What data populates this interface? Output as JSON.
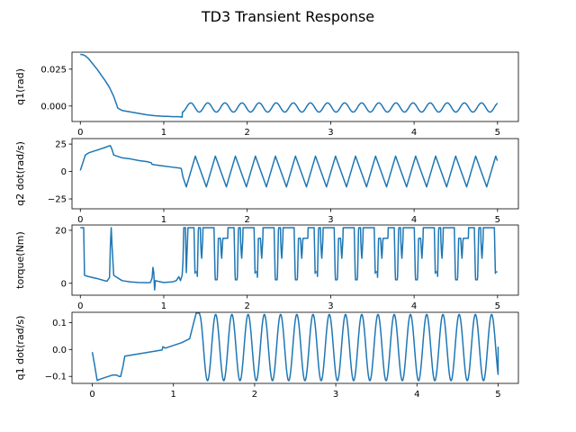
{
  "figure": {
    "title": "TD3 Transient Response"
  },
  "chart_data": [
    {
      "type": "line",
      "ylabel": "q1(rad)",
      "xlim": [
        -0.1,
        5.25
      ],
      "ylim": [
        -0.0105,
        0.0365
      ],
      "xticks": [
        0,
        1,
        2,
        3,
        4,
        5
      ],
      "yticks": [
        {
          "v": 0.025,
          "label": "0.025"
        },
        {
          "v": 0.0,
          "label": "0.000"
        }
      ],
      "color": "#1f77b4",
      "anchors": [
        [
          0,
          0.035
        ],
        [
          0.03,
          0.0348
        ],
        [
          0.06,
          0.034
        ],
        [
          0.1,
          0.032
        ],
        [
          0.2,
          0.025
        ],
        [
          0.3,
          0.017
        ],
        [
          0.35,
          0.0125
        ],
        [
          0.4,
          0.0065
        ],
        [
          0.45,
          -0.0015
        ],
        [
          0.5,
          -0.003
        ],
        [
          0.6,
          -0.004
        ],
        [
          0.7,
          -0.005
        ],
        [
          0.8,
          -0.006
        ],
        [
          0.9,
          -0.0066
        ],
        [
          1.0,
          -0.007
        ],
        [
          1.05,
          -0.007
        ],
        [
          1.1,
          -0.0072
        ],
        [
          1.18,
          -0.0072
        ],
        [
          1.22,
          -0.0075
        ]
      ],
      "osc": {
        "t0": 1.22,
        "t1": 5.0,
        "period": 0.205,
        "amp": 0.0031,
        "center": -0.001,
        "phase": 4.712
      }
    },
    {
      "type": "line",
      "ylabel": "q2 dot(rad/s)",
      "xlim": [
        -0.1,
        5.25
      ],
      "ylim": [
        -34,
        30
      ],
      "xticks": [
        0,
        1,
        2,
        3,
        4,
        5
      ],
      "yticks": [
        {
          "v": 25,
          "label": "25"
        },
        {
          "v": 0,
          "label": "0"
        },
        {
          "v": -25,
          "label": "−25"
        }
      ],
      "color": "#1f77b4",
      "anchors": [
        [
          0,
          1
        ],
        [
          0.03,
          8
        ],
        [
          0.06,
          15
        ],
        [
          0.1,
          17
        ],
        [
          0.2,
          19.5
        ],
        [
          0.3,
          22
        ],
        [
          0.35,
          23.5
        ],
        [
          0.36,
          23.5
        ],
        [
          0.38,
          20
        ],
        [
          0.4,
          15
        ],
        [
          0.5,
          12.5
        ],
        [
          0.6,
          11.5
        ],
        [
          0.7,
          10
        ],
        [
          0.8,
          9
        ],
        [
          0.85,
          8
        ],
        [
          0.86,
          6.5
        ],
        [
          0.9,
          6
        ],
        [
          1.0,
          5
        ],
        [
          1.1,
          4
        ],
        [
          1.2,
          3
        ],
        [
          1.21,
          2.5
        ],
        [
          1.23,
          -5
        ],
        [
          1.27,
          -14
        ]
      ],
      "osc": {
        "t0": 1.27,
        "t1": 5.0,
        "period": 0.24,
        "amp": 14,
        "center": 0,
        "shape": "saw"
      }
    },
    {
      "type": "line",
      "ylabel": "torque(Nm)",
      "xlim": [
        -0.1,
        5.25
      ],
      "ylim": [
        -4.5,
        22
      ],
      "xticks": [
        0,
        1,
        2,
        3,
        4,
        5
      ],
      "yticks": [
        {
          "v": 20,
          "label": "20"
        },
        {
          "v": 0,
          "label": "0"
        }
      ],
      "color": "#1f77b4",
      "anchors": [
        [
          0,
          21
        ],
        [
          0.04,
          21
        ],
        [
          0.05,
          3
        ],
        [
          0.1,
          2.5
        ],
        [
          0.2,
          1.8
        ],
        [
          0.3,
          0.9
        ],
        [
          0.32,
          0.8
        ],
        [
          0.35,
          2.2
        ],
        [
          0.36,
          14
        ],
        [
          0.37,
          21
        ],
        [
          0.38,
          14
        ],
        [
          0.4,
          3
        ],
        [
          0.5,
          1
        ],
        [
          0.6,
          0.5
        ],
        [
          0.7,
          0.3
        ],
        [
          0.8,
          0.2
        ],
        [
          0.84,
          0.3
        ],
        [
          0.86,
          2
        ],
        [
          0.87,
          6
        ],
        [
          0.88,
          4
        ],
        [
          0.89,
          -2.5
        ],
        [
          0.9,
          1
        ],
        [
          0.95,
          0.6
        ],
        [
          1.0,
          0.3
        ],
        [
          1.1,
          0.5
        ],
        [
          1.15,
          1
        ],
        [
          1.18,
          2.5
        ],
        [
          1.2,
          1
        ],
        [
          1.22,
          3
        ],
        [
          1.23,
          8
        ],
        [
          1.24,
          21
        ],
        [
          1.26,
          21
        ],
        [
          1.27,
          4
        ],
        [
          1.29,
          21
        ]
      ],
      "osc": {
        "t0": 1.29,
        "t1": 5.0,
        "period": 0.24,
        "hi": 21,
        "lo": 0.3,
        "shape": "bang"
      }
    },
    {
      "type": "line",
      "ylabel": "q1 dot(rad/s)",
      "xlim": [
        -0.25,
        5.25
      ],
      "ylim": [
        -0.126,
        0.138
      ],
      "xticks": [
        0,
        1,
        2,
        3,
        4,
        5
      ],
      "yticks": [
        {
          "v": 0.1,
          "label": "0.1"
        },
        {
          "v": 0.0,
          "label": "0.0"
        },
        {
          "v": -0.1,
          "label": "−0.1"
        }
      ],
      "color": "#1f77b4",
      "anchors": [
        [
          0,
          -0.01
        ],
        [
          0.03,
          -0.06
        ],
        [
          0.06,
          -0.115
        ],
        [
          0.1,
          -0.11
        ],
        [
          0.2,
          -0.1
        ],
        [
          0.25,
          -0.095
        ],
        [
          0.3,
          -0.095
        ],
        [
          0.33,
          -0.1
        ],
        [
          0.35,
          -0.1
        ],
        [
          0.38,
          -0.06
        ],
        [
          0.4,
          -0.025
        ],
        [
          0.5,
          -0.02
        ],
        [
          0.6,
          -0.015
        ],
        [
          0.7,
          -0.01
        ],
        [
          0.8,
          -0.005
        ],
        [
          0.86,
          -0.002
        ],
        [
          0.87,
          0.01
        ],
        [
          0.9,
          0.005
        ],
        [
          1.0,
          0.015
        ],
        [
          1.1,
          0.025
        ],
        [
          1.2,
          0.04
        ],
        [
          1.25,
          0.1
        ],
        [
          1.28,
          0.135
        ],
        [
          1.32,
          0.135
        ]
      ],
      "osc": {
        "t0": 1.32,
        "t1": 5.0,
        "period": 0.2,
        "amp": 0.123,
        "center": 0.007,
        "phase": 1.5708,
        "end": [
          5.0,
          0.01
        ]
      }
    }
  ]
}
